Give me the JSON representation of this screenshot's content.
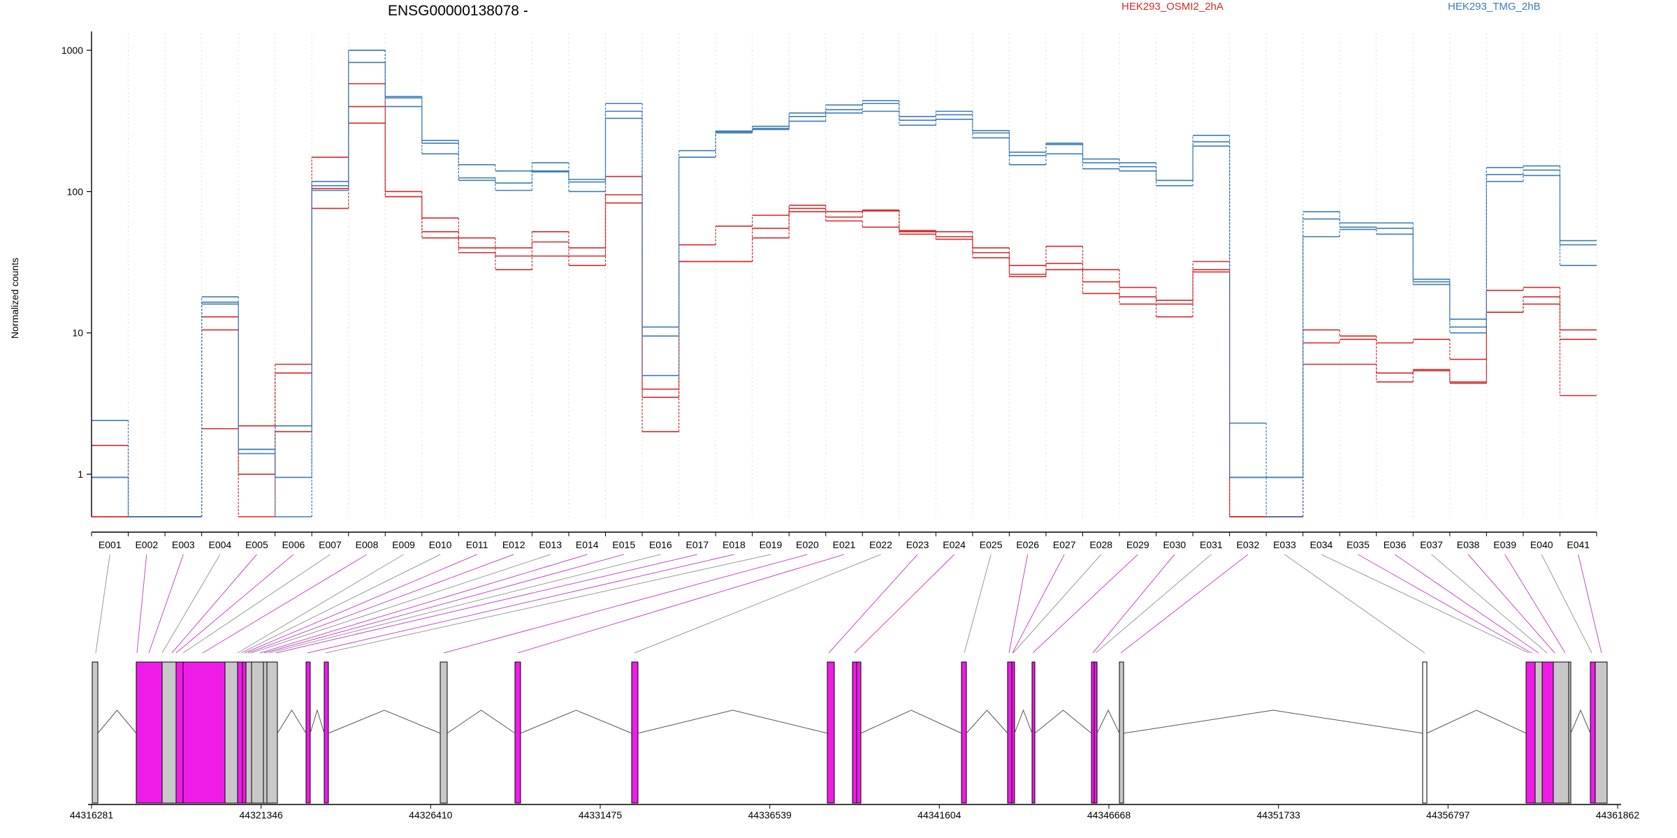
{
  "title": "ENSG00000138078 -",
  "legend": [
    {
      "name": "HEK293_OSMI2_2hA",
      "color": "#d42a2a"
    },
    {
      "name": "HEK293_TMG_2hB",
      "color": "#3c7cb8"
    }
  ],
  "chart_data": {
    "type": "line",
    "title": "ENSG00000138078 -",
    "ylabel": "Normalized counts",
    "yscale": "log",
    "ylim": [
      0.5,
      1000
    ],
    "yticks": [
      1,
      10,
      100,
      1000
    ],
    "ytick_labels": [
      "1",
      "10",
      "100",
      "1000"
    ],
    "categories": [
      "E001",
      "E002",
      "E003",
      "E004",
      "E005",
      "E006",
      "E007",
      "E008",
      "E009",
      "E010",
      "E011",
      "E012",
      "E013",
      "E014",
      "E015",
      "E016",
      "E017",
      "E018",
      "E019",
      "E020",
      "E021",
      "E022",
      "E023",
      "E024",
      "E025",
      "E026",
      "E027",
      "E028",
      "E029",
      "E030",
      "E031",
      "E032",
      "E033",
      "E034",
      "E035",
      "E036",
      "E037",
      "E038",
      "E039",
      "E040",
      "E041"
    ],
    "series": [
      {
        "name": "HEK293_OSMI2_2hA",
        "color": "#d42a2a",
        "values": [
          1.6,
          0.5,
          0.5,
          13,
          2.2,
          6,
          175,
          580,
          100,
          65,
          47,
          40,
          52,
          40,
          128,
          4,
          42,
          57,
          68,
          80,
          72,
          74,
          53,
          52,
          40,
          30,
          41,
          28,
          21,
          17,
          32,
          0.5,
          0.5,
          10.5,
          9.5,
          8.5,
          9,
          6.5,
          20,
          21,
          10.5
        ]
      },
      {
        "name": "HEK293_OSMI2_2hA",
        "color": "#d42a2a",
        "values": [
          0.5,
          0.5,
          0.5,
          10.5,
          1,
          5.2,
          76,
          400,
          92,
          52,
          40,
          35,
          44,
          35,
          95,
          3.5,
          32,
          32,
          55,
          76,
          66,
          73,
          52,
          48,
          37,
          26,
          31,
          23,
          18,
          16,
          28,
          0.5,
          0.5,
          8.5,
          9,
          5.2,
          5.5,
          4.4,
          14,
          18,
          9
        ]
      },
      {
        "name": "HEK293_OSMI2_2hA",
        "color": "#d42a2a",
        "values": [
          0.5,
          0.5,
          0.5,
          2.1,
          0.5,
          2,
          105,
          305,
          92,
          47,
          37,
          28,
          35,
          30,
          83,
          2,
          32,
          32,
          47,
          72,
          62,
          56,
          50,
          46,
          34,
          25,
          28,
          19,
          16,
          13,
          27,
          0.5,
          0.5,
          6,
          6,
          4.5,
          5.4,
          4.5,
          14,
          16,
          3.6
        ]
      },
      {
        "name": "HEK293_TMG_2hB",
        "color": "#3c7cb8",
        "values": [
          2.4,
          0.5,
          0.5,
          18,
          1.5,
          2.2,
          118,
          1000,
          470,
          230,
          155,
          140,
          160,
          122,
          420,
          11,
          195,
          268,
          290,
          360,
          410,
          440,
          340,
          370,
          270,
          190,
          220,
          170,
          160,
          120,
          250,
          2.3,
          0.95,
          72,
          60,
          60,
          24,
          12.5,
          148,
          152,
          45
        ]
      },
      {
        "name": "HEK293_TMG_2hB",
        "color": "#3c7cb8",
        "values": [
          0.95,
          0.5,
          0.5,
          16.5,
          1.5,
          0.95,
          110,
          820,
          460,
          220,
          125,
          115,
          140,
          117,
          370,
          9.5,
          175,
          265,
          280,
          340,
          380,
          420,
          320,
          350,
          260,
          180,
          215,
          160,
          150,
          120,
          225,
          0.95,
          0.95,
          64,
          56,
          55,
          23,
          11,
          132,
          142,
          42
        ]
      },
      {
        "name": "HEK293_TMG_2hB",
        "color": "#3c7cb8",
        "values": [
          0.95,
          0.5,
          0.5,
          16,
          1.4,
          0.5,
          102,
          1000,
          400,
          185,
          120,
          102,
          138,
          100,
          330,
          5,
          175,
          260,
          275,
          315,
          360,
          370,
          295,
          325,
          240,
          155,
          185,
          145,
          140,
          110,
          210,
          0.95,
          0.5,
          48,
          54,
          50,
          22,
          10,
          118,
          130,
          30
        ]
      }
    ]
  },
  "track": {
    "x_ticks": [
      "44316281",
      "44321346",
      "44326410",
      "44331475",
      "44336539",
      "44341604",
      "44346668",
      "44351733",
      "44356797",
      "44361862"
    ]
  }
}
